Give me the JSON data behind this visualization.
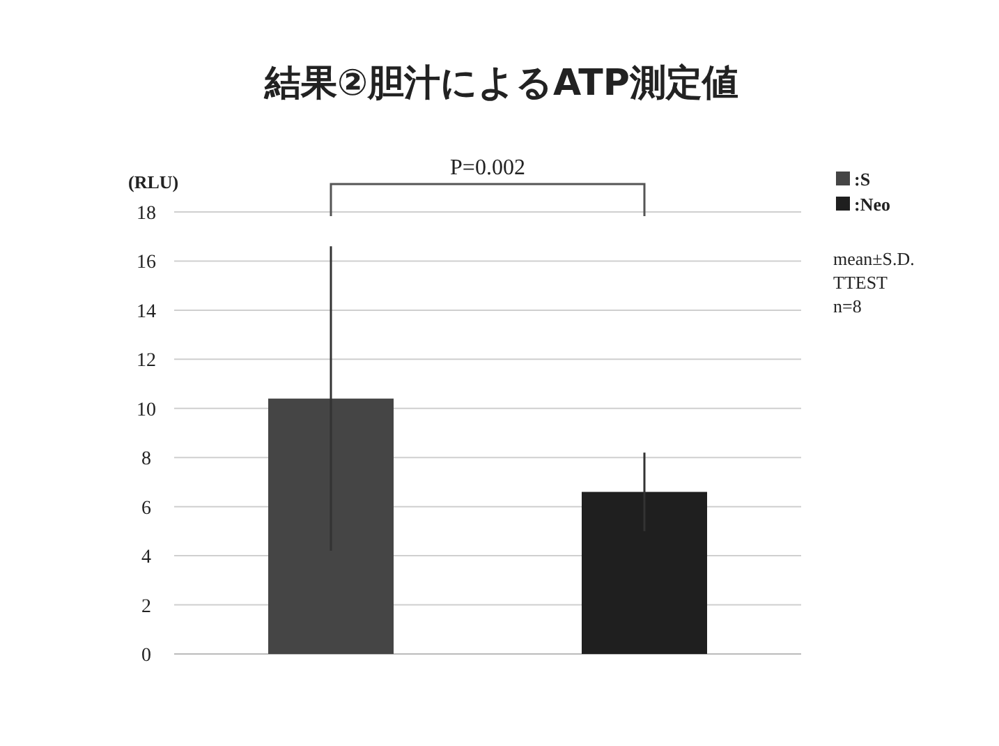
{
  "chart_data": {
    "type": "bar",
    "title": "結果②胆汁によるATP測定値",
    "ylabel": "(RLU)",
    "categories": [
      null,
      null
    ],
    "series": [
      {
        "name": ":S",
        "color": "#454545",
        "values": [
          10.4,
          null
        ],
        "errors": [
          6.2,
          null
        ]
      },
      {
        "name": ":Neo",
        "color": "#1f1f1f",
        "values": [
          null,
          6.6
        ],
        "errors": [
          null,
          1.6
        ]
      }
    ],
    "ylim": [
      0,
      18
    ],
    "yticks": [
      0,
      2,
      4,
      6,
      8,
      10,
      12,
      14,
      16,
      18
    ],
    "grid": "y",
    "legend": "top right",
    "annotations": [
      "P=0.002",
      "mean±S.D.",
      "TTEST",
      "n=8"
    ]
  }
}
